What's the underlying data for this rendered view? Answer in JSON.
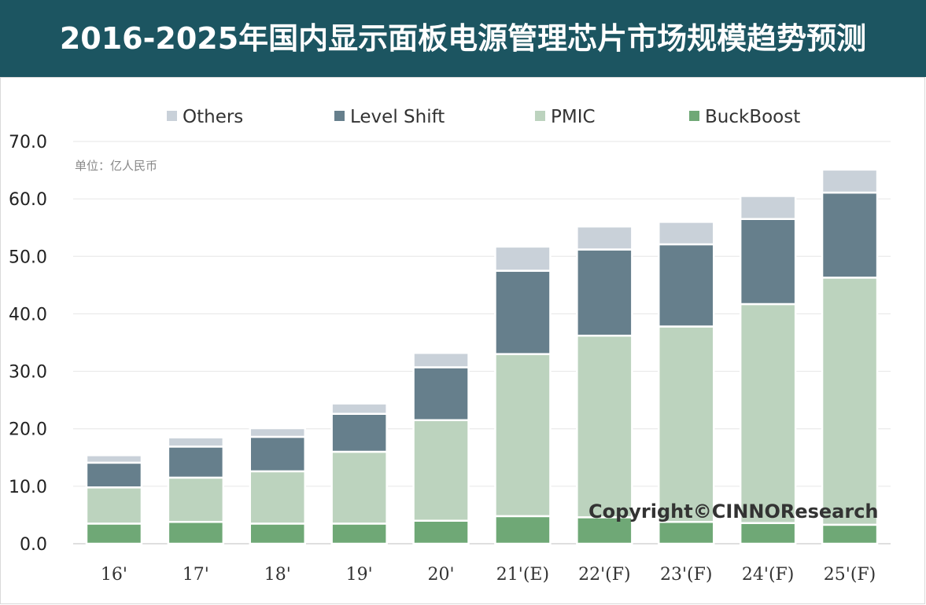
{
  "title": "2016-2025年国内显示面板电源管理芯片市场规模趋势预测",
  "unit_label": "单位：亿人民币",
  "copyright": "Copyright©CINNOResearch",
  "colors": {
    "header_bg": "#1c5561",
    "Others": "#c9d1d9",
    "Level Shift": "#667f8c",
    "PMIC": "#bcd3be",
    "BuckBoost": "#6fa876"
  },
  "chart_data": {
    "type": "bar",
    "stacked": true,
    "title": "2016-2025年国内显示面板电源管理芯片市场规模趋势预测",
    "ylabel": "单位：亿人民币",
    "ylim": [
      0,
      70
    ],
    "yticks": [
      "0.0",
      "10.0",
      "20.0",
      "30.0",
      "40.0",
      "50.0",
      "60.0",
      "70.0"
    ],
    "grid": true,
    "legend_position": "top",
    "legend": [
      "Others",
      "Level Shift",
      "PMIC",
      "BuckBoost"
    ],
    "categories": [
      "16'",
      "17'",
      "18'",
      "19'",
      "20'",
      "21'(E)",
      "22'(F)",
      "23'(F)",
      "24'(F)",
      "25'(F)"
    ],
    "series": [
      {
        "name": "BuckBoost",
        "values": [
          3.5,
          3.8,
          3.5,
          3.5,
          4.0,
          4.8,
          4.6,
          3.8,
          3.6,
          3.3
        ]
      },
      {
        "name": "PMIC",
        "values": [
          6.3,
          7.7,
          9.1,
          12.5,
          17.5,
          28.2,
          31.6,
          34.0,
          38.1,
          43.0
        ]
      },
      {
        "name": "Level Shift",
        "values": [
          4.3,
          5.4,
          6.0,
          6.6,
          9.2,
          14.5,
          15.0,
          14.3,
          14.8,
          14.8
        ]
      },
      {
        "name": "Others",
        "values": [
          1.3,
          1.6,
          1.5,
          1.8,
          2.5,
          4.2,
          4.0,
          3.9,
          4.0,
          4.0
        ]
      }
    ]
  }
}
